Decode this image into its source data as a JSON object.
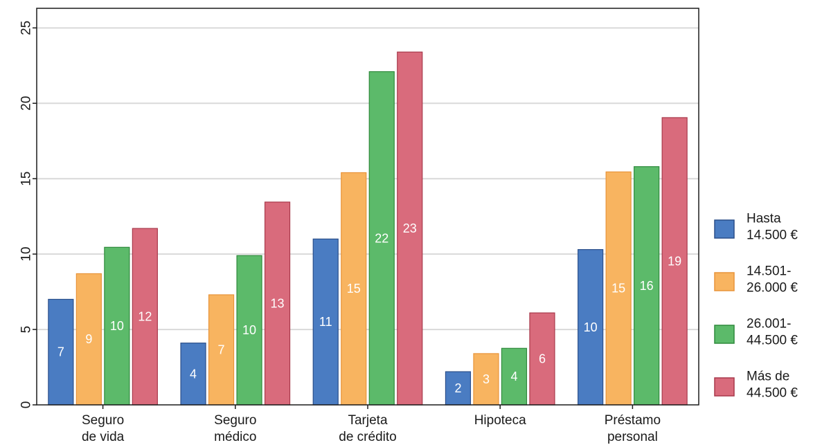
{
  "chart_data": {
    "type": "bar",
    "categories": [
      [
        "Seguro",
        "de vida"
      ],
      [
        "Seguro",
        "médico"
      ],
      [
        "Tarjeta",
        "de crédito"
      ],
      [
        "Hipoteca"
      ],
      [
        "Préstamo",
        "personal"
      ]
    ],
    "series": [
      {
        "name": [
          "Hasta",
          "14.500 €"
        ],
        "color": "#4a7cc2",
        "edge": "#2b4f8a",
        "values": [
          7.0,
          4.1,
          11.0,
          2.2,
          10.3
        ],
        "labels": [
          "7",
          "4",
          "11",
          "2",
          "10"
        ]
      },
      {
        "name": [
          "14.501-",
          "26.000 €"
        ],
        "color": "#f8b460",
        "edge": "#e8943a",
        "values": [
          8.7,
          7.3,
          15.4,
          3.4,
          15.45
        ],
        "labels": [
          "9",
          "7",
          "15",
          "3",
          "15"
        ]
      },
      {
        "name": [
          "26.001-",
          "44.500 €"
        ],
        "color": "#5cba6a",
        "edge": "#2f8a3c",
        "values": [
          10.45,
          9.9,
          22.1,
          3.75,
          15.8
        ],
        "labels": [
          "10",
          "10",
          "22",
          "4",
          "16"
        ]
      },
      {
        "name": [
          "Más de",
          "44.500 €"
        ],
        "color": "#d96b7c",
        "edge": "#a8394b",
        "values": [
          11.7,
          13.45,
          23.4,
          6.1,
          19.05
        ],
        "labels": [
          "12",
          "13",
          "23",
          "6",
          "19"
        ]
      }
    ],
    "yticks": [
      0,
      5,
      10,
      15,
      20,
      25
    ],
    "ylim": [
      0,
      26.3
    ],
    "grid": true,
    "legend_position": "right",
    "title": "",
    "xlabel": "",
    "ylabel": ""
  }
}
